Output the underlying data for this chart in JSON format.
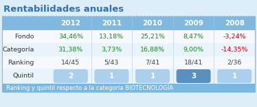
{
  "title": "Rentabilidades anuales",
  "columns": [
    "",
    "2012",
    "2011",
    "2010",
    "2009",
    "2008"
  ],
  "rows": [
    {
      "label": "Fondo",
      "values": [
        "34,46%",
        "13,18%",
        "25,21%",
        "8,47%",
        "-3,24%"
      ],
      "colors": [
        "#1a8a1a",
        "#1a8a1a",
        "#1a8a1a",
        "#1a8a1a",
        "#cc0000"
      ]
    },
    {
      "label": "Categoría",
      "values": [
        "31,38%",
        "3,73%",
        "16,88%",
        "9,00%",
        "-14,35%"
      ],
      "colors": [
        "#1a8a1a",
        "#1a8a1a",
        "#1a8a1a",
        "#1a8a1a",
        "#cc0000"
      ]
    },
    {
      "label": "Ranking",
      "values": [
        "14/45",
        "5/43",
        "7/41",
        "18/41",
        "2/36"
      ],
      "colors": [
        "#444444",
        "#444444",
        "#444444",
        "#444444",
        "#444444"
      ]
    },
    {
      "label": "Quintil",
      "values": [
        "2",
        "1",
        "1",
        "3",
        "1"
      ],
      "is_dark": [
        false,
        false,
        false,
        true,
        false
      ]
    }
  ],
  "header_bg": "#80b8e0",
  "header_text": "#ffffff",
  "row_bg_even": "#f5f9fd",
  "row_bg_odd": "#e8f3fb",
  "quintil_light_bg": "#aad0ee",
  "quintil_dark_bg": "#5890c0",
  "footer_bg": "#7ab8e0",
  "footer_text": "#ffffff",
  "footer_label": "Ranking y quintil respecto a la categoría BIOTECNOLOGÍA",
  "title_color": "#3070b8",
  "body_bg": "#ddeef8",
  "table_outer_bg": "#c8e4f4",
  "col_sep_color": "#b0ccde"
}
